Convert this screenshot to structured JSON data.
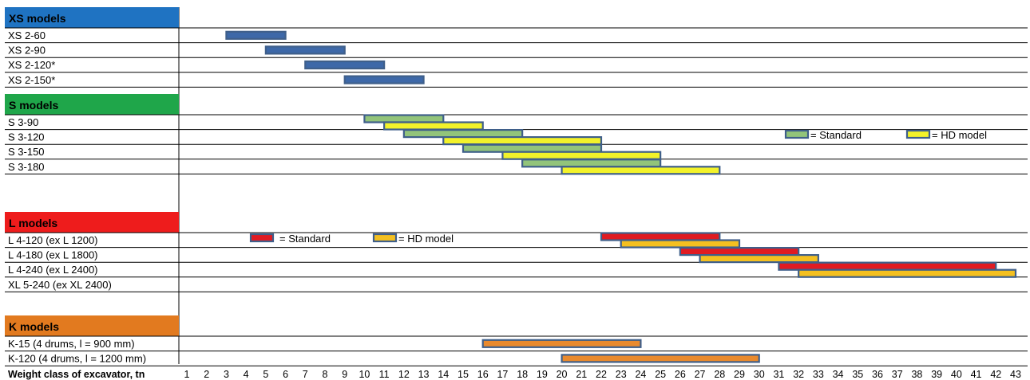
{
  "chart_data": {
    "type": "bar",
    "orientation": "horizontal-range",
    "xlabel": "Weight class of excavator, tn",
    "x_ticks": [
      1,
      2,
      3,
      4,
      5,
      6,
      7,
      8,
      9,
      10,
      11,
      12,
      13,
      14,
      15,
      16,
      17,
      18,
      19,
      20,
      21,
      22,
      23,
      24,
      25,
      26,
      27,
      28,
      29,
      30,
      31,
      32,
      33,
      34,
      35,
      36,
      37,
      38,
      39,
      40,
      41,
      42,
      43
    ],
    "xlim": [
      1,
      43
    ],
    "grid": "horizontal row lines",
    "colors": {
      "outline": "#3f5f8a",
      "xs_fill": "#3d68a8",
      "s_standard": "#92c47a",
      "s_hd": "#f2f22a",
      "l_standard": "#e01b22",
      "l_hd": "#f4c020",
      "k_fill": "#e98a2e",
      "xs_header": "#1f73c2",
      "s_header": "#1fa64a",
      "l_header": "#ee1c1c",
      "k_header": "#e27a1f"
    },
    "sections": [
      {
        "title": "XS models",
        "color_key": "xs_header",
        "rows": [
          {
            "label": "XS 2-60",
            "bars": [
              {
                "from": 3,
                "to": 6,
                "fill": "xs_fill"
              }
            ]
          },
          {
            "label": "XS 2-90",
            "bars": [
              {
                "from": 5,
                "to": 9,
                "fill": "xs_fill"
              }
            ]
          },
          {
            "label": "XS 2-120*",
            "bars": [
              {
                "from": 7,
                "to": 11,
                "fill": "xs_fill"
              }
            ]
          },
          {
            "label": "XS 2-150*",
            "bars": [
              {
                "from": 9,
                "to": 13,
                "fill": "xs_fill"
              }
            ]
          }
        ]
      },
      {
        "title": "S models",
        "color_key": "s_header",
        "rows": [
          {
            "label": "S 3-90",
            "bars": [
              {
                "from": 10,
                "to": 14,
                "fill": "s_standard",
                "series": "Standard"
              },
              {
                "from": 11,
                "to": 16,
                "fill": "s_hd",
                "series": "HD model"
              }
            ]
          },
          {
            "label": "S 3-120",
            "bars": [
              {
                "from": 12,
                "to": 18,
                "fill": "s_standard",
                "series": "Standard"
              },
              {
                "from": 14,
                "to": 22,
                "fill": "s_hd",
                "series": "HD model"
              }
            ]
          },
          {
            "label": "S 3-150",
            "bars": [
              {
                "from": 15,
                "to": 22,
                "fill": "s_standard",
                "series": "Standard"
              },
              {
                "from": 17,
                "to": 25,
                "fill": "s_hd",
                "series": "HD model"
              }
            ]
          },
          {
            "label": "S 3-180",
            "bars": [
              {
                "from": 18,
                "to": 25,
                "fill": "s_standard",
                "series": "Standard"
              },
              {
                "from": 20,
                "to": 28,
                "fill": "s_hd",
                "series": "HD model"
              }
            ]
          }
        ]
      },
      {
        "title": "L models",
        "color_key": "l_header",
        "rows": [
          {
            "label": "L 4-120 (ex L 1200)",
            "bars": [
              {
                "from": 22,
                "to": 28,
                "fill": "l_standard",
                "series": "Standard"
              },
              {
                "from": 23,
                "to": 29,
                "fill": "l_hd",
                "series": "HD model"
              }
            ]
          },
          {
            "label": "L 4-180 (ex L 1800)",
            "bars": [
              {
                "from": 26,
                "to": 32,
                "fill": "l_standard",
                "series": "Standard"
              },
              {
                "from": 27,
                "to": 33,
                "fill": "l_hd",
                "series": "HD model"
              }
            ]
          },
          {
            "label": "L 4-240 (ex L 2400)",
            "bars": [
              {
                "from": 31,
                "to": 42,
                "fill": "l_standard",
                "series": "Standard"
              },
              {
                "from": 32,
                "to": 43,
                "fill": "l_hd",
                "series": "HD model"
              }
            ]
          },
          {
            "label": "XL 5-240 (ex XL 2400)",
            "bars": []
          }
        ]
      },
      {
        "title": "K models",
        "color_key": "k_header",
        "rows": [
          {
            "label": "K-15 (4 drums, l = 900 mm)",
            "bars": [
              {
                "from": 16,
                "to": 24,
                "fill": "k_fill"
              }
            ]
          },
          {
            "label": "K-120 (4 drums, l = 1200 mm)",
            "bars": [
              {
                "from": 20,
                "to": 30,
                "fill": "k_fill"
              }
            ]
          }
        ]
      }
    ],
    "legends": [
      {
        "placement": "right, beside S models",
        "items": [
          {
            "label": "= Standard",
            "fill": "s_standard"
          },
          {
            "label": "= HD model",
            "fill": "s_hd"
          }
        ]
      },
      {
        "placement": "left, beside L models",
        "items": [
          {
            "label": "= Standard",
            "fill": "l_standard"
          },
          {
            "label": "= HD model",
            "fill": "l_hd"
          }
        ]
      }
    ]
  }
}
